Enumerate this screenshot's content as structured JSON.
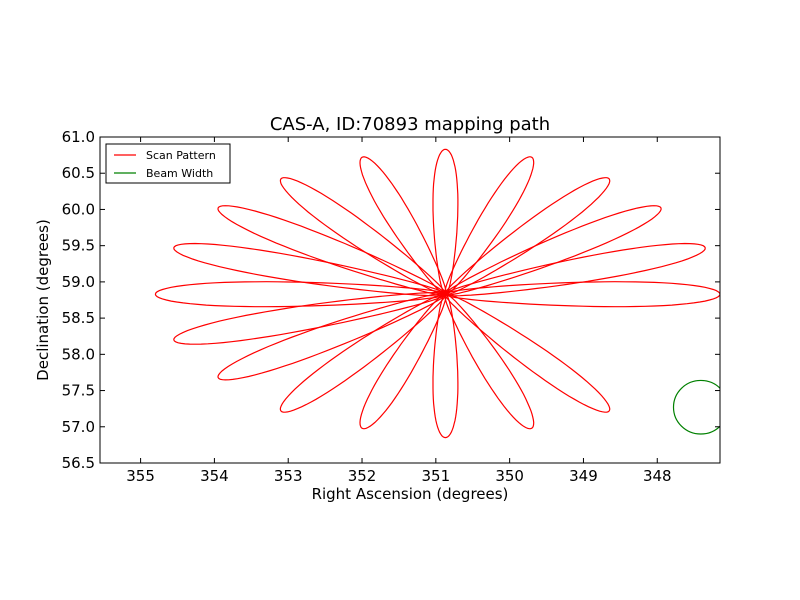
{
  "chart_data": {
    "type": "line",
    "title": "CAS-A, ID:70893 mapping path",
    "xlabel": "Right Ascension (degrees)",
    "ylabel": "Declination (degrees)",
    "xlim": [
      355.55,
      347.15
    ],
    "ylim": [
      56.5,
      61.0
    ],
    "x_reversed": true,
    "xticks": [
      355,
      354,
      353,
      352,
      351,
      350,
      349,
      348
    ],
    "xtick_labels": [
      "355",
      "354",
      "353",
      "352",
      "351",
      "350",
      "349",
      "348"
    ],
    "yticks": [
      56.5,
      57.0,
      57.5,
      58.0,
      58.5,
      59.0,
      59.5,
      60.0,
      60.5,
      61.0
    ],
    "ytick_labels": [
      "56.5",
      "57.0",
      "57.5",
      "58.0",
      "58.5",
      "59.0",
      "59.5",
      "60.0",
      "60.5",
      "61.0"
    ],
    "grid": false,
    "legend_position": "top-left",
    "series": [
      {
        "name": "Scan Pattern",
        "color": "#ff0000",
        "kind": "rose-pattern",
        "center": [
          350.87,
          58.83
        ],
        "petal_count": 18,
        "petal_tips": [
          [
            347.15,
            58.83
          ],
          [
            347.35,
            59.47
          ],
          [
            347.95,
            60.02
          ],
          [
            348.65,
            60.42
          ],
          [
            349.7,
            60.72
          ],
          [
            350.87,
            60.83
          ],
          [
            352.0,
            60.72
          ],
          [
            353.1,
            60.42
          ],
          [
            353.95,
            60.02
          ],
          [
            354.55,
            59.47
          ],
          [
            354.8,
            58.83
          ],
          [
            354.55,
            58.2
          ],
          [
            353.95,
            57.68
          ],
          [
            353.1,
            57.22
          ],
          [
            352.0,
            56.98
          ],
          [
            350.87,
            56.85
          ],
          [
            349.7,
            56.98
          ],
          [
            348.65,
            57.22
          ]
        ]
      },
      {
        "name": "Beam Width",
        "color": "#008000",
        "kind": "circle",
        "center": [
          347.41,
          57.27
        ],
        "radius_ra": 0.37,
        "radius_dec": 0.37
      }
    ]
  }
}
